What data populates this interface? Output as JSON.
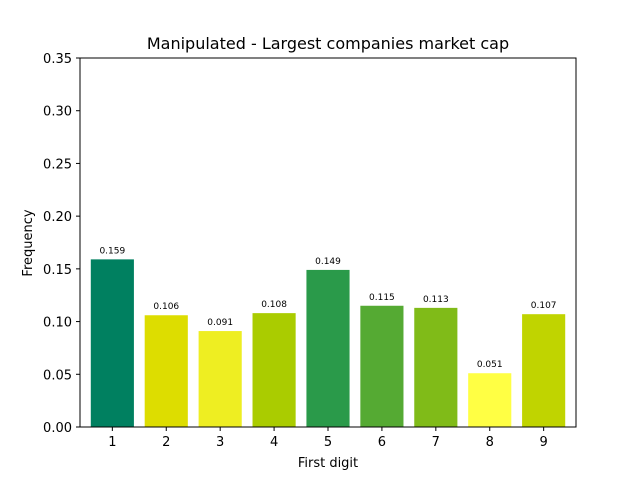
{
  "chart_data": {
    "type": "bar",
    "title": "Manipulated - Largest companies market cap",
    "xlabel": "First digit",
    "ylabel": "Frequency",
    "categories": [
      "1",
      "2",
      "3",
      "4",
      "5",
      "6",
      "7",
      "8",
      "9"
    ],
    "values": [
      0.159,
      0.106,
      0.091,
      0.108,
      0.149,
      0.115,
      0.113,
      0.051,
      0.107
    ],
    "data_labels": [
      "0.159",
      "0.106",
      "0.091",
      "0.108",
      "0.149",
      "0.115",
      "0.113",
      "0.051",
      "0.107"
    ],
    "colors": [
      "#008060",
      "#dddd00",
      "#eeee22",
      "#aacc00",
      "#2a9a4a",
      "#55aa33",
      "#80bb18",
      "#ffff44",
      "#c0d400"
    ],
    "ylim": [
      0,
      0.35
    ],
    "yticks": [
      "0.00",
      "0.05",
      "0.10",
      "0.15",
      "0.20",
      "0.25",
      "0.30",
      "0.35"
    ],
    "grid": false,
    "legend": false
  }
}
